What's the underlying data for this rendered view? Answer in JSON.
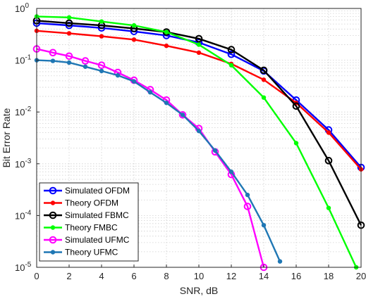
{
  "chart_data": {
    "type": "line",
    "title": "",
    "xlabel": "SNR, dB",
    "ylabel": "Bit Error Rate",
    "xlim": [
      0,
      20
    ],
    "ylim": [
      1e-05,
      1
    ],
    "y_scale": "log",
    "grid": true,
    "legend_position": "bottom-left",
    "x_ticks": [
      0,
      2,
      4,
      6,
      8,
      10,
      12,
      14,
      16,
      18,
      20
    ],
    "x_tick_labels": [
      "0",
      "2",
      "4",
      "6",
      "8",
      "10",
      "12",
      "14",
      "16",
      "18",
      "20"
    ],
    "y_ticks": [
      {
        "value": 1e-05,
        "mantissa": "10",
        "exp": "-5"
      },
      {
        "value": 0.0001,
        "mantissa": "10",
        "exp": "-4"
      },
      {
        "value": 0.001,
        "mantissa": "10",
        "exp": "-3"
      },
      {
        "value": 0.01,
        "mantissa": "10",
        "exp": "-2"
      },
      {
        "value": 0.1,
        "mantissa": "10",
        "exp": "-1"
      },
      {
        "value": 1,
        "mantissa": "10",
        "exp": "0"
      }
    ],
    "series": [
      {
        "name": "Simulated OFDM",
        "color": "#0000ff",
        "marker": "open-circle",
        "x": [
          0,
          2,
          4,
          6,
          8,
          10,
          12,
          14,
          16,
          18,
          20
        ],
        "y": [
          0.52,
          0.47,
          0.42,
          0.36,
          0.3,
          0.22,
          0.13,
          0.062,
          0.017,
          0.0045,
          0.00085
        ]
      },
      {
        "name": "Theory OFDM",
        "color": "#ff0000",
        "marker": "dot",
        "x": [
          0,
          2,
          4,
          6,
          8,
          10,
          12,
          14,
          16,
          18,
          20
        ],
        "y": [
          0.37,
          0.33,
          0.29,
          0.25,
          0.19,
          0.14,
          0.085,
          0.042,
          0.015,
          0.004,
          0.00078
        ]
      },
      {
        "name": "Simulated FBMC",
        "color": "#000000",
        "marker": "open-circle",
        "x": [
          0,
          2,
          4,
          6,
          8,
          10,
          12,
          14,
          16,
          18,
          20
        ],
        "y": [
          0.58,
          0.52,
          0.47,
          0.41,
          0.35,
          0.26,
          0.16,
          0.064,
          0.013,
          0.00115,
          6.5e-05
        ]
      },
      {
        "name": "Theory FMBC",
        "color": "#00ff00",
        "marker": "dot",
        "x": [
          0,
          2,
          4,
          6,
          8,
          10,
          12,
          14,
          16,
          18,
          19.7
        ],
        "y": [
          0.7,
          0.67,
          0.56,
          0.47,
          0.35,
          0.2,
          0.08,
          0.019,
          0.0025,
          0.00014,
          1e-05
        ]
      },
      {
        "name": "Simulated UFMC",
        "color": "#ff00ff",
        "marker": "open-circle",
        "x": [
          0,
          1,
          2,
          3,
          4,
          5,
          6,
          7,
          8,
          9,
          10,
          11,
          12,
          13,
          14
        ],
        "y": [
          0.165,
          0.14,
          0.12,
          0.097,
          0.08,
          0.058,
          0.041,
          0.027,
          0.017,
          0.0088,
          0.0048,
          0.0017,
          0.00062,
          0.00015,
          1e-05
        ]
      },
      {
        "name": "Theory UFMC",
        "color": "#1f77b4",
        "marker": "dot",
        "x": [
          0,
          1,
          2,
          3,
          4,
          5,
          6,
          7,
          8,
          9,
          10,
          11,
          12,
          13,
          14,
          15
        ],
        "y": [
          0.1,
          0.097,
          0.09,
          0.075,
          0.062,
          0.051,
          0.039,
          0.024,
          0.015,
          0.0088,
          0.0043,
          0.0018,
          0.0007,
          0.00025,
          6.5e-05,
          1.3e-05
        ]
      }
    ]
  }
}
